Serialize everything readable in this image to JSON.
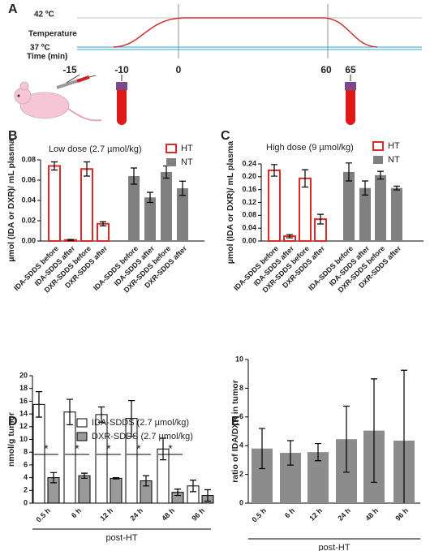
{
  "diagram": {
    "label": "A",
    "high_temp": "42 ºC",
    "temperature": "Temperature",
    "low_temp": "37 ºC",
    "time_label": "Time (min)",
    "time_points": [
      "-15",
      "-10",
      "0",
      "60",
      "65"
    ]
  },
  "chart_data": [
    {
      "type": "bar",
      "panel": "B",
      "title": "Low dose (2.7 µmol/kg)",
      "ylabel": "µmol (IDA or DXR)/ mL plasma",
      "categories": [
        "IDA-SDDS before",
        "IDA-SDDS after",
        "DXR-SDDS before",
        "DXR-SDDS after",
        "IDA-SDDS before",
        "IDA-SDDS after",
        "DXR-SDDS before",
        "DXR-SDDS after"
      ],
      "series": [
        {
          "name": "HT",
          "color": "#e0282a",
          "style": "outline",
          "values": [
            0.074,
            0.001,
            0.071,
            0.017,
            null,
            null,
            null,
            null
          ],
          "errors": [
            0.004,
            0.0005,
            0.007,
            0.002,
            null,
            null,
            null,
            null
          ]
        },
        {
          "name": "NT",
          "color": "#808080",
          "style": "filled",
          "values": [
            null,
            null,
            null,
            null,
            0.064,
            0.043,
            0.068,
            0.052
          ],
          "errors": [
            null,
            null,
            null,
            null,
            0.008,
            0.005,
            0.006,
            0.007
          ]
        }
      ],
      "ylim": [
        0,
        0.08
      ],
      "yticks": [
        {
          "value": 0,
          "label": "0.00"
        },
        {
          "value": 0.02,
          "label": "0.02"
        },
        {
          "value": 0.04,
          "label": "0.04"
        },
        {
          "value": 0.06,
          "label": "0.06"
        },
        {
          "value": 0.08,
          "label": "0.08"
        }
      ]
    },
    {
      "type": "bar",
      "panel": "C",
      "title": "High dose (9 µmol/kg)",
      "ylabel": "µmol (IDA or DXR)/ mL plasma",
      "categories": [
        "IDA-SDDS before",
        "IDA-SDDS after",
        "DXR-SDDS before",
        "DXR-SDDS after",
        "IDA-SDDS before",
        "IDA-SDDS after",
        "DXR-SDDS before",
        "DXR-SDDS after"
      ],
      "series": [
        {
          "name": "HT",
          "color": "#e0282a",
          "style": "outline",
          "values": [
            0.22,
            0.015,
            0.195,
            0.068,
            null,
            null,
            null,
            null
          ],
          "errors": [
            0.018,
            0.005,
            0.027,
            0.015,
            null,
            null,
            null,
            null
          ]
        },
        {
          "name": "NT",
          "color": "#808080",
          "style": "filled",
          "values": [
            null,
            null,
            null,
            null,
            0.215,
            0.165,
            0.205,
            0.165
          ],
          "errors": [
            null,
            null,
            null,
            null,
            0.028,
            0.022,
            0.012,
            0.006
          ]
        }
      ],
      "ylim": [
        0,
        0.24
      ],
      "yticks": [
        {
          "value": 0,
          "label": "0.00"
        },
        {
          "value": 0.04,
          "label": "0.04"
        },
        {
          "value": 0.08,
          "label": "0.08"
        },
        {
          "value": 0.12,
          "label": "0.12"
        },
        {
          "value": 0.16,
          "label": "0.16"
        },
        {
          "value": 0.2,
          "label": "0.20"
        },
        {
          "value": 0.24,
          "label": "0.24"
        }
      ]
    },
    {
      "type": "bar",
      "panel": "D",
      "ylabel": "nmol/g tumor",
      "xlabel": "post-HT",
      "categories": [
        "0.5 h",
        "6 h",
        "12 h",
        "24 h",
        "48 h",
        "96 h"
      ],
      "series": [
        {
          "name": "IDA-SDDS (2.7 µmol/kg)",
          "color": "#ffffff",
          "edgecolor": "#000000",
          "values": [
            15.5,
            14.3,
            13.9,
            13.3,
            8.5,
            2.7
          ],
          "errors": [
            2.0,
            2.0,
            1.2,
            2.8,
            1.7,
            0.9
          ]
        },
        {
          "name": "DXR-SDDS (2.7 µmol/kg)",
          "color": "#9a9a9a",
          "edgecolor": "#000000",
          "values": [
            4.0,
            4.3,
            3.9,
            3.5,
            1.7,
            1.2
          ],
          "errors": [
            0.8,
            0.4,
            0.1,
            0.8,
            0.5,
            0.9
          ]
        }
      ],
      "significance": [
        "*",
        "*",
        "*",
        "*",
        "*",
        null
      ],
      "ylim": [
        0,
        20
      ],
      "yticks": [
        0,
        2,
        4,
        6,
        8,
        10,
        12,
        14,
        16,
        18,
        20
      ]
    },
    {
      "type": "bar",
      "panel": "E",
      "ylabel": "ratio of IDA/DXR in tumor",
      "xlabel": "post-HT",
      "categories": [
        "0.5 h",
        "6 h",
        "12 h",
        "24 h",
        "48 h",
        "96 h"
      ],
      "series": [
        {
          "color": "#8c8c8c",
          "values": [
            3.8,
            3.5,
            3.55,
            4.45,
            5.05,
            4.35
          ],
          "errors": [
            1.4,
            0.85,
            0.6,
            2.3,
            3.6,
            4.9
          ]
        }
      ],
      "ylim": [
        0,
        10
      ],
      "yticks": [
        0,
        2,
        4,
        6,
        8,
        10
      ]
    }
  ]
}
